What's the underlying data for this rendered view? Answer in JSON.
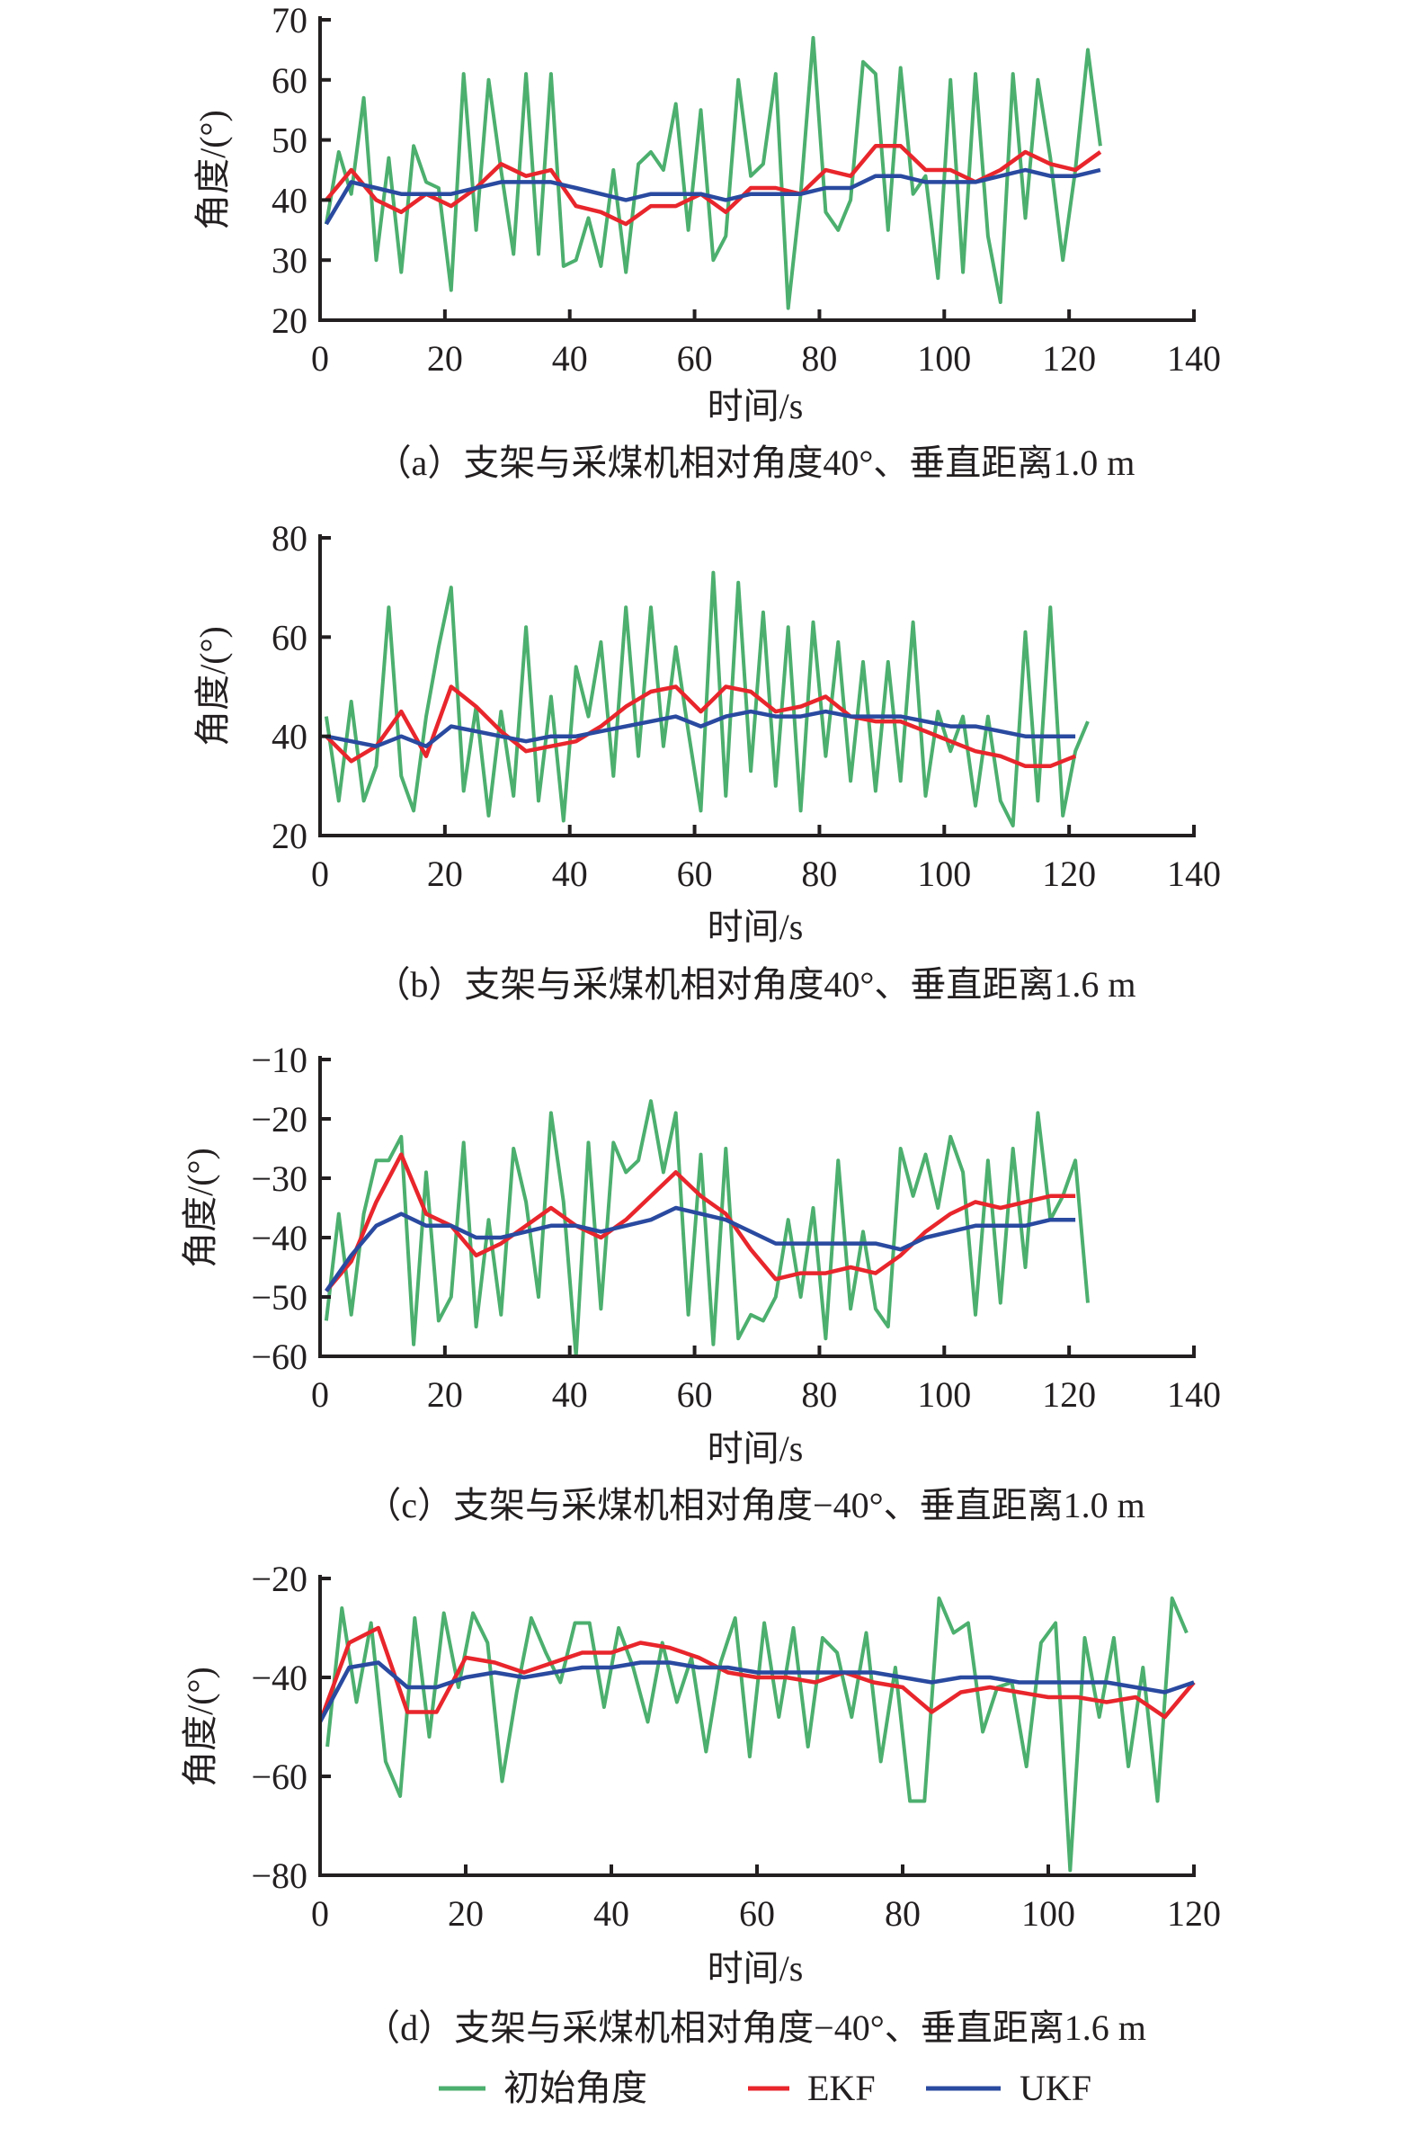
{
  "chart_data": [
    {
      "type": "line",
      "caption": "（a）支架与采煤机相对角度40°、垂直距离1.0 m",
      "xlabel": "时间/s",
      "ylabel": "角度/(°)",
      "xlim": [
        0,
        140
      ],
      "ylim": [
        20,
        70
      ],
      "xticks": [
        "0",
        "20",
        "40",
        "60",
        "80",
        "100",
        "120",
        "140"
      ],
      "yticks": [
        "20",
        "30",
        "40",
        "50",
        "60",
        "70"
      ],
      "series": [
        {
          "name": "初始角度",
          "x_start": 1,
          "x_step": 2,
          "values": [
            36,
            48,
            41,
            57,
            30,
            47,
            28,
            49,
            43,
            42,
            25,
            61,
            35,
            60,
            45,
            31,
            61,
            31,
            61,
            29,
            30,
            37,
            29,
            45,
            28,
            46,
            48,
            45,
            56,
            35,
            55,
            30,
            34,
            60,
            44,
            46,
            61,
            22,
            41,
            67,
            38,
            35,
            40,
            63,
            61,
            35,
            62,
            41,
            44,
            27,
            60,
            28,
            61,
            34,
            23,
            61,
            37,
            60,
            47,
            30,
            45,
            65,
            49
          ]
        },
        {
          "name": "EKF",
          "x_start": 1,
          "x_step": 4,
          "values": [
            40,
            45,
            40,
            38,
            41,
            39,
            42,
            46,
            44,
            45,
            39,
            38,
            36,
            39,
            39,
            41,
            38,
            42,
            42,
            41,
            45,
            44,
            49,
            49,
            45,
            45,
            43,
            45,
            48,
            46,
            45,
            48
          ]
        },
        {
          "name": "UKF",
          "x_start": 1,
          "x_step": 4,
          "values": [
            36,
            43,
            42,
            41,
            41,
            41,
            42,
            43,
            43,
            43,
            42,
            41,
            40,
            41,
            41,
            41,
            40,
            41,
            41,
            41,
            42,
            42,
            44,
            44,
            43,
            43,
            43,
            44,
            45,
            44,
            44,
            45
          ]
        }
      ]
    },
    {
      "type": "line",
      "caption": "（b）支架与采煤机相对角度40°、垂直距离1.6 m",
      "xlabel": "时间/s",
      "ylabel": "角度/(°)",
      "xlim": [
        0,
        140
      ],
      "ylim": [
        20,
        80
      ],
      "xticks": [
        "0",
        "20",
        "40",
        "60",
        "80",
        "100",
        "120",
        "140"
      ],
      "yticks": [
        "20",
        "40",
        "60",
        "80"
      ],
      "series": [
        {
          "name": "初始角度",
          "x_start": 1,
          "x_step": 2,
          "values": [
            44,
            27,
            47,
            27,
            34,
            66,
            32,
            25,
            44,
            58,
            70,
            29,
            46,
            24,
            45,
            28,
            62,
            27,
            48,
            23,
            54,
            44,
            59,
            32,
            66,
            36,
            66,
            38,
            58,
            41,
            25,
            73,
            28,
            71,
            33,
            65,
            30,
            62,
            25,
            63,
            36,
            59,
            31,
            55,
            29,
            55,
            31,
            63,
            28,
            45,
            37,
            44,
            26,
            44,
            27,
            22,
            61,
            27,
            66,
            24,
            37,
            43
          ]
        },
        {
          "name": "EKF",
          "x_start": 1,
          "x_step": 4,
          "values": [
            40,
            35,
            38,
            45,
            36,
            50,
            46,
            41,
            37,
            38,
            39,
            42,
            46,
            49,
            50,
            45,
            50,
            49,
            45,
            46,
            48,
            44,
            43,
            43,
            41,
            39,
            37,
            36,
            34,
            34,
            36
          ]
        },
        {
          "name": "UKF",
          "x_start": 1,
          "x_step": 4,
          "values": [
            40,
            39,
            38,
            40,
            38,
            42,
            41,
            40,
            39,
            40,
            40,
            41,
            42,
            43,
            44,
            42,
            44,
            45,
            44,
            44,
            45,
            44,
            44,
            44,
            43,
            42,
            42,
            41,
            40,
            40,
            40
          ]
        }
      ]
    },
    {
      "type": "line",
      "caption": "（c）支架与采煤机相对角度−40°、垂直距离1.0 m",
      "xlabel": "时间/s",
      "ylabel": "角度/(°)",
      "xlim": [
        0,
        140
      ],
      "ylim": [
        -60,
        -10
      ],
      "xticks": [
        "0",
        "20",
        "40",
        "60",
        "80",
        "100",
        "120",
        "140"
      ],
      "yticks": [
        "−60",
        "−50",
        "−40",
        "−30",
        "−20",
        "−10"
      ],
      "series": [
        {
          "name": "初始角度",
          "x_start": 1,
          "x_step": 2,
          "values": [
            -54,
            -36,
            -53,
            -36,
            -27,
            -27,
            -23,
            -58,
            -29,
            -54,
            -50,
            -24,
            -55,
            -37,
            -53,
            -25,
            -34,
            -50,
            -19,
            -34,
            -60,
            -24,
            -52,
            -24,
            -29,
            -27,
            -17,
            -29,
            -19,
            -53,
            -26,
            -58,
            -25,
            -57,
            -53,
            -54,
            -50,
            -37,
            -50,
            -35,
            -57,
            -27,
            -52,
            -39,
            -52,
            -55,
            -25,
            -33,
            -26,
            -35,
            -23,
            -29,
            -53,
            -27,
            -51,
            -25,
            -45,
            -19,
            -37,
            -33,
            -27,
            -51
          ]
        },
        {
          "name": "EKF",
          "x_start": 1,
          "x_step": 4,
          "values": [
            -49,
            -44,
            -34,
            -26,
            -36,
            -38,
            -43,
            -41,
            -38,
            -35,
            -38,
            -40,
            -37,
            -33,
            -29,
            -33,
            -36,
            -42,
            -47,
            -46,
            -46,
            -45,
            -46,
            -43,
            -39,
            -36,
            -34,
            -35,
            -34,
            -33,
            -33
          ]
        },
        {
          "name": "UKF",
          "x_start": 1,
          "x_step": 4,
          "values": [
            -49,
            -43,
            -38,
            -36,
            -38,
            -38,
            -40,
            -40,
            -39,
            -38,
            -38,
            -39,
            -38,
            -37,
            -35,
            -36,
            -37,
            -39,
            -41,
            -41,
            -41,
            -41,
            -41,
            -42,
            -40,
            -39,
            -38,
            -38,
            -38,
            -37,
            -37
          ]
        }
      ]
    },
    {
      "type": "line",
      "caption": "（d）支架与采煤机相对角度−40°、垂直距离1.6 m",
      "xlabel": "时间/s",
      "ylabel": "角度/(°)",
      "xlim": [
        0,
        120
      ],
      "ylim": [
        -80,
        -20
      ],
      "xticks": [
        "0",
        "20",
        "40",
        "60",
        "80",
        "100",
        "120"
      ],
      "yticks": [
        "−80",
        "−60",
        "−40",
        "−20"
      ],
      "series": [
        {
          "name": "初始角度",
          "x_start": 1,
          "x_step": 2,
          "values": [
            -54,
            -26,
            -45,
            -29,
            -57,
            -64,
            -28,
            -52,
            -27,
            -42,
            -27,
            -33,
            -61,
            -43,
            -28,
            -35,
            -41,
            -29,
            -29,
            -46,
            -30,
            -38,
            -49,
            -33,
            -45,
            -36,
            -55,
            -37,
            -28,
            -56,
            -29,
            -48,
            -30,
            -54,
            -32,
            -35,
            -48,
            -31,
            -57,
            -38,
            -65,
            -65,
            -24,
            -31,
            -29,
            -51,
            -42,
            -41,
            -58,
            -33,
            -29,
            -79,
            -32,
            -48,
            -32,
            -58,
            -38,
            -65,
            -24,
            -31
          ]
        },
        {
          "name": "EKF",
          "x_start": 0,
          "x_step": 4,
          "values": [
            -49,
            -33,
            -30,
            -47,
            -47,
            -36,
            -37,
            -39,
            -37,
            -35,
            -35,
            -33,
            -34,
            -36,
            -39,
            -40,
            -40,
            -41,
            -39,
            -41,
            -42,
            -47,
            -43,
            -42,
            -43,
            -44,
            -44,
            -45,
            -44,
            -48,
            -41
          ]
        },
        {
          "name": "UKF",
          "x_start": 0,
          "x_step": 4,
          "values": [
            -49,
            -38,
            -37,
            -42,
            -42,
            -40,
            -39,
            -40,
            -39,
            -38,
            -38,
            -37,
            -37,
            -38,
            -38,
            -39,
            -39,
            -39,
            -39,
            -39,
            -40,
            -41,
            -40,
            -40,
            -41,
            -41,
            -41,
            -41,
            -42,
            -43,
            -41
          ]
        }
      ]
    }
  ],
  "legend": {
    "items": [
      {
        "label": "初始角度",
        "color": "#4caf6e"
      },
      {
        "label": "EKF",
        "color": "#e8262c"
      },
      {
        "label": "UKF",
        "color": "#2a4aa0"
      }
    ]
  }
}
